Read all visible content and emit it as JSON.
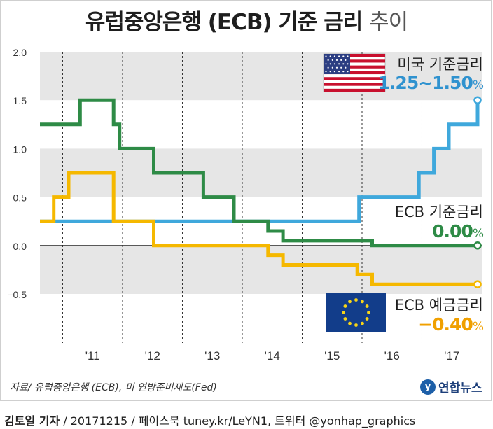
{
  "title_main": "유럽중앙은행 (ECB) 기준 금리",
  "title_sub": "추이",
  "source": "자료/ 유럽중앙은행 (ECB), 미 연방준비제도(Fed)",
  "credit": {
    "author": "김토일 기자",
    "rest": " / 20171215 / 페이스북 tuney.kr/LeYN1, 트위터 @yonhap_graphics"
  },
  "logo_text": "연합뉴스",
  "legend_labels": {
    "us": {
      "name": "미국 기준금리",
      "value": "1.25~1.50",
      "unit": "%"
    },
    "ecb": {
      "name": "ECB 기준금리",
      "value": "0.00",
      "unit": "%"
    },
    "ecb_deposit": {
      "name": "ECB 예금금리",
      "value": "−0.40",
      "unit": "%"
    }
  },
  "colors": {
    "us": "#3fa8dc",
    "ecb": "#2e8b46",
    "deposit": "#f5b800",
    "band": "#e6e6e6"
  },
  "chart_data": {
    "type": "line",
    "step": true,
    "ylim": [
      -0.5,
      2.0
    ],
    "yticks": [
      2.0,
      1.5,
      1.0,
      0.5,
      0.0,
      -0.5
    ],
    "ytick_labels": [
      "2.0",
      "1.5",
      "1.0",
      "0.5",
      "0.0",
      "−0.5"
    ],
    "xlim": [
      2010.62,
      2018.0
    ],
    "x_boundaries": [
      2011,
      2012,
      2013,
      2014,
      2015,
      2016,
      2017
    ],
    "xtick_labels": [
      "'11",
      "'12",
      "'13",
      "'14",
      "'15",
      "'16",
      "'17"
    ],
    "xtick_positions": [
      2011.5,
      2012.5,
      2013.5,
      2014.5,
      2015.5,
      2016.5,
      2017.5
    ],
    "series": [
      {
        "key": "us",
        "points": [
          [
            2010.62,
            0.25
          ],
          [
            2015.95,
            0.25
          ],
          [
            2015.95,
            0.5
          ],
          [
            2016.95,
            0.5
          ],
          [
            2016.95,
            0.75
          ],
          [
            2017.2,
            0.75
          ],
          [
            2017.2,
            1.0
          ],
          [
            2017.45,
            1.0
          ],
          [
            2017.45,
            1.25
          ],
          [
            2017.93,
            1.25
          ],
          [
            2017.93,
            1.5
          ]
        ]
      },
      {
        "key": "ecb",
        "points": [
          [
            2010.62,
            1.25
          ],
          [
            2011.29,
            1.25
          ],
          [
            2011.29,
            1.5
          ],
          [
            2011.85,
            1.5
          ],
          [
            2011.85,
            1.25
          ],
          [
            2011.95,
            1.25
          ],
          [
            2011.95,
            1.0
          ],
          [
            2012.52,
            1.0
          ],
          [
            2012.52,
            0.75
          ],
          [
            2013.35,
            0.75
          ],
          [
            2013.35,
            0.5
          ],
          [
            2013.86,
            0.5
          ],
          [
            2013.86,
            0.25
          ],
          [
            2014.43,
            0.25
          ],
          [
            2014.43,
            0.15
          ],
          [
            2014.68,
            0.15
          ],
          [
            2014.68,
            0.05
          ],
          [
            2016.17,
            0.05
          ],
          [
            2016.17,
            0.0
          ],
          [
            2017.93,
            0.0
          ]
        ]
      },
      {
        "key": "deposit",
        "points": [
          [
            2010.62,
            0.25
          ],
          [
            2010.85,
            0.25
          ],
          [
            2010.85,
            0.5
          ],
          [
            2011.1,
            0.5
          ],
          [
            2011.1,
            0.75
          ],
          [
            2011.85,
            0.75
          ],
          [
            2011.85,
            0.25
          ],
          [
            2012.52,
            0.25
          ],
          [
            2012.52,
            0.0
          ],
          [
            2014.43,
            0.0
          ],
          [
            2014.43,
            -0.1
          ],
          [
            2014.68,
            -0.1
          ],
          [
            2014.68,
            -0.2
          ],
          [
            2015.92,
            -0.2
          ],
          [
            2015.92,
            -0.3
          ],
          [
            2016.17,
            -0.3
          ],
          [
            2016.17,
            -0.4
          ],
          [
            2017.93,
            -0.4
          ]
        ]
      }
    ]
  }
}
